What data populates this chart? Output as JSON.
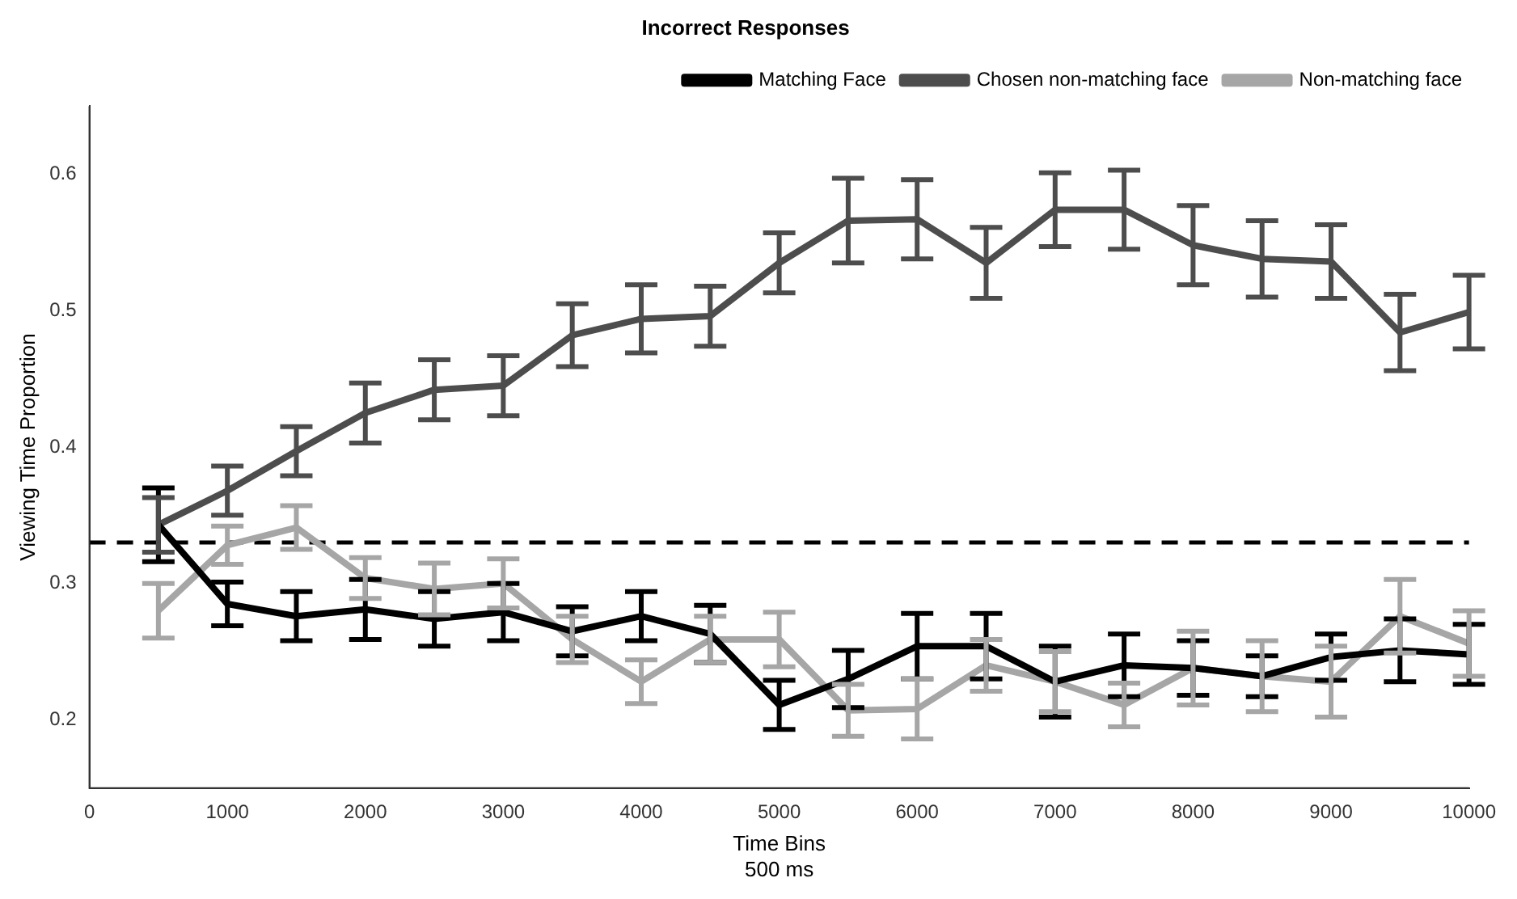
{
  "chart_data": {
    "type": "line",
    "title": "Incorrect Responses",
    "xlabel": "Time Bins\n500 ms",
    "ylabel": "Viewing Time Proportion",
    "x": [
      500,
      1000,
      1500,
      2000,
      2500,
      3000,
      3500,
      4000,
      4500,
      5000,
      5500,
      6000,
      6500,
      7000,
      7500,
      8000,
      8500,
      9000,
      9500,
      10000
    ],
    "series": [
      {
        "name": "Matching Face",
        "color": "#000000",
        "values": [
          0.343,
          0.285,
          0.276,
          0.281,
          0.274,
          0.279,
          0.265,
          0.276,
          0.263,
          0.211,
          0.23,
          0.254,
          0.254,
          0.228,
          0.24,
          0.238,
          0.232,
          0.246,
          0.251,
          0.248
        ],
        "errors": [
          0.027,
          0.016,
          0.018,
          0.022,
          0.02,
          0.021,
          0.018,
          0.018,
          0.021,
          0.018,
          0.021,
          0.024,
          0.024,
          0.026,
          0.023,
          0.02,
          0.015,
          0.017,
          0.023,
          0.022
        ]
      },
      {
        "name": "Chosen non-matching face",
        "color": "#4d4d4d",
        "values": [
          0.343,
          0.368,
          0.397,
          0.425,
          0.442,
          0.445,
          0.482,
          0.494,
          0.496,
          0.535,
          0.566,
          0.567,
          0.535,
          0.574,
          0.574,
          0.548,
          0.538,
          0.536,
          0.484,
          0.499
        ],
        "errors": [
          0.02,
          0.018,
          0.018,
          0.022,
          0.022,
          0.022,
          0.023,
          0.025,
          0.022,
          0.022,
          0.031,
          0.029,
          0.026,
          0.027,
          0.029,
          0.029,
          0.028,
          0.027,
          0.028,
          0.027
        ]
      },
      {
        "name": "Non-matching face",
        "color": "#a6a6a6",
        "values": [
          0.28,
          0.328,
          0.341,
          0.304,
          0.296,
          0.3,
          0.259,
          0.228,
          0.259,
          0.259,
          0.207,
          0.208,
          0.24,
          0.228,
          0.211,
          0.238,
          0.232,
          0.228,
          0.276,
          0.256
        ],
        "errors": [
          0.02,
          0.014,
          0.016,
          0.015,
          0.019,
          0.018,
          0.017,
          0.016,
          0.017,
          0.02,
          0.019,
          0.022,
          0.019,
          0.022,
          0.016,
          0.027,
          0.026,
          0.026,
          0.027,
          0.024
        ]
      }
    ],
    "xlim": [
      0,
      10000
    ],
    "xticks": [
      0,
      1000,
      2000,
      3000,
      4000,
      5000,
      6000,
      7000,
      8000,
      9000,
      10000
    ],
    "ylim": [
      0.15,
      0.65
    ],
    "yticks": [
      0.2,
      0.3,
      0.4,
      0.5,
      0.6
    ],
    "ref_lines": [
      {
        "axis": "y",
        "value": 0.33,
        "color": "#000000",
        "line_style": "dashed"
      }
    ],
    "legend": "top right",
    "marker": "none",
    "line_style": "solid",
    "grid": false
  }
}
